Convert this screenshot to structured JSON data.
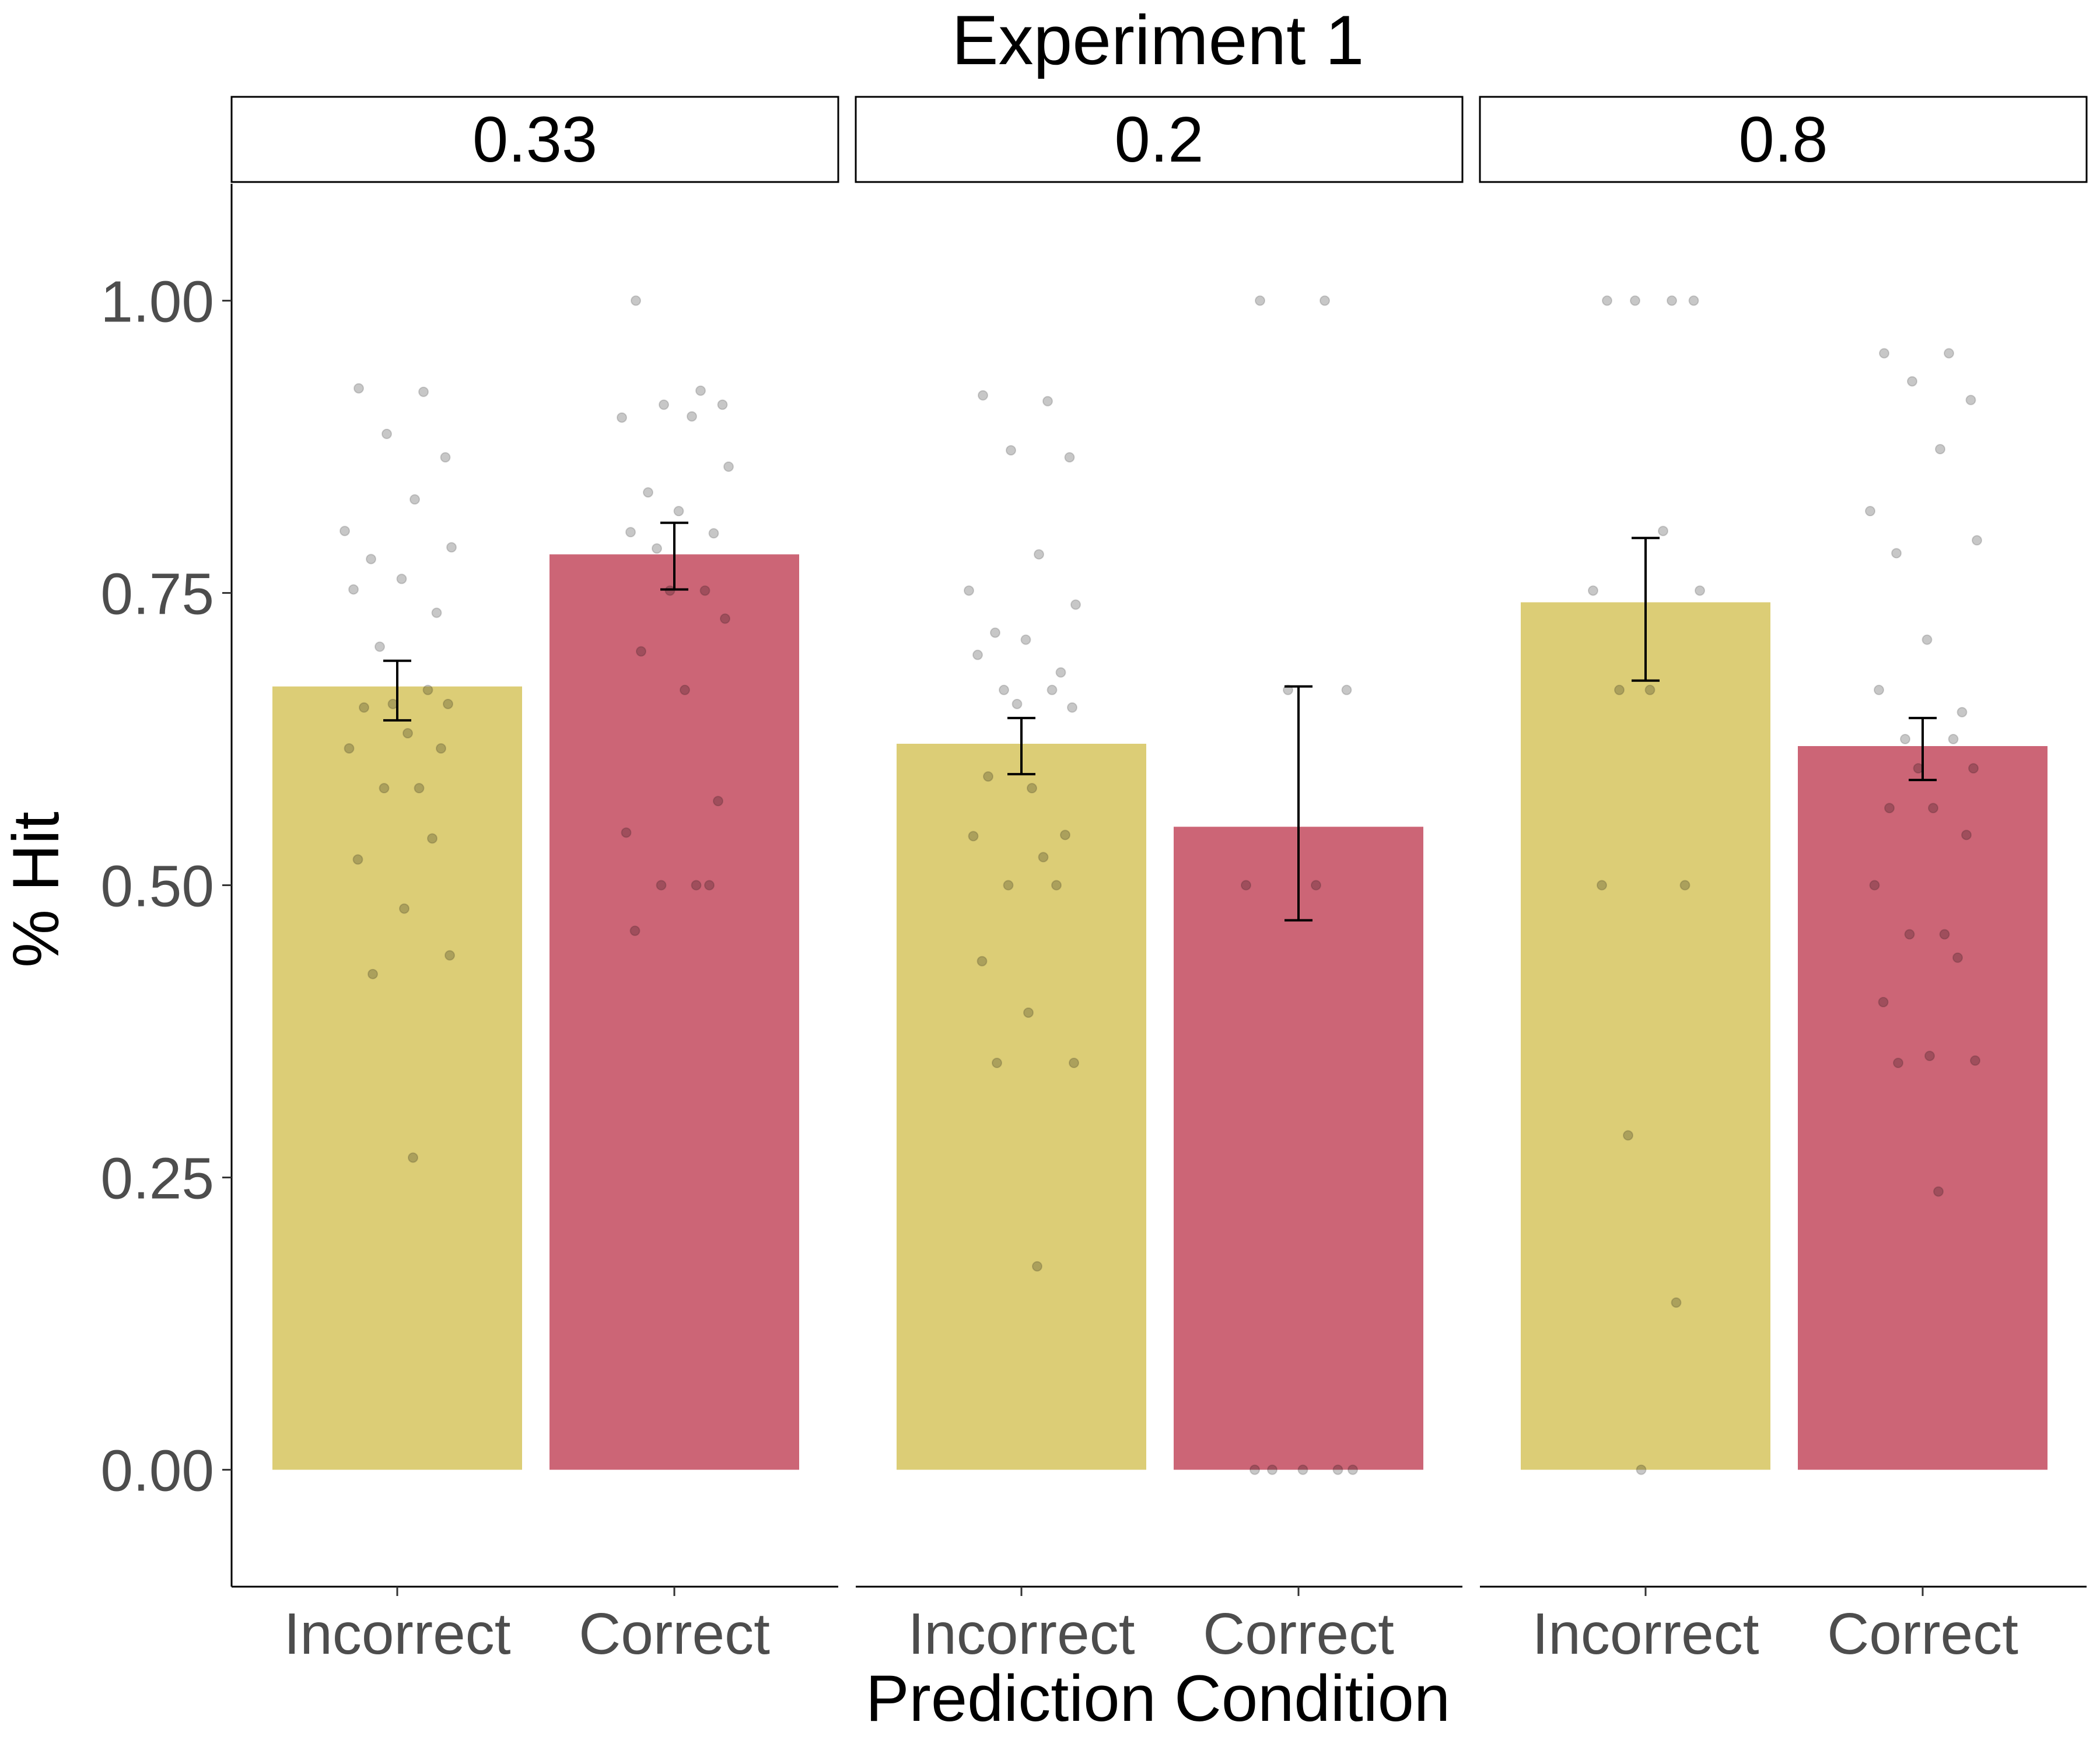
{
  "chart_data": {
    "type": "bar",
    "title": "Experiment 1",
    "xlabel": "Prediction Condition",
    "ylabel": "% Hit",
    "ylim": [
      -0.1,
      1.1
    ],
    "yticks": [
      0.0,
      0.25,
      0.5,
      0.75,
      1.0
    ],
    "ytick_labels": [
      "0.00",
      "0.25",
      "0.50",
      "0.75",
      "1.00"
    ],
    "categories": [
      "Incorrect",
      "Correct"
    ],
    "colors": {
      "Incorrect": "#dccd76",
      "Correct": "#cc6576"
    },
    "panels": [
      {
        "label": "0.33",
        "bars": [
          {
            "category": "Incorrect",
            "mean": 0.67,
            "err_low": 0.641,
            "err_high": 0.692,
            "points": [
              0.925,
              0.922,
              0.886,
              0.866,
              0.83,
              0.803,
              0.789,
              0.779,
              0.762,
              0.753,
              0.733,
              0.704,
              0.667,
              0.655,
              0.655,
              0.652,
              0.63,
              0.617,
              0.617,
              0.583,
              0.583,
              0.54,
              0.522,
              0.48,
              0.44,
              0.424,
              0.267
            ]
          },
          {
            "category": "Correct",
            "mean": 0.783,
            "err_low": 0.753,
            "err_high": 0.81,
            "points": [
              1.0,
              0.923,
              0.911,
              0.911,
              0.901,
              0.9,
              0.858,
              0.836,
              0.82,
              0.802,
              0.801,
              0.788,
              0.752,
              0.752,
              0.728,
              0.7,
              0.667,
              0.572,
              0.545,
              0.5,
              0.5,
              0.5,
              0.461
            ]
          }
        ]
      },
      {
        "label": "0.2",
        "bars": [
          {
            "category": "Incorrect",
            "mean": 0.621,
            "err_low": 0.595,
            "err_high": 0.643,
            "points": [
              0.919,
              0.914,
              0.872,
              0.866,
              0.783,
              0.752,
              0.74,
              0.716,
              0.71,
              0.697,
              0.682,
              0.667,
              0.667,
              0.655,
              0.652,
              0.593,
              0.583,
              0.543,
              0.542,
              0.524,
              0.5,
              0.5,
              0.435,
              0.391,
              0.348,
              0.348,
              0.174
            ]
          },
          {
            "category": "Correct",
            "mean": 0.55,
            "err_low": 0.47,
            "err_high": 0.67,
            "points": [
              1.0,
              1.0,
              0.667,
              0.667,
              0.5,
              0.5,
              0.0,
              0.0,
              0.0,
              0.0,
              0.0
            ]
          }
        ]
      },
      {
        "label": "0.8",
        "bars": [
          {
            "category": "Incorrect",
            "mean": 0.742,
            "err_low": 0.675,
            "err_high": 0.797,
            "points": [
              1.0,
              1.0,
              1.0,
              1.0,
              0.803,
              0.752,
              0.752,
              0.667,
              0.667,
              0.5,
              0.5,
              0.286,
              0.143,
              0.0
            ]
          },
          {
            "category": "Correct",
            "mean": 0.619,
            "err_low": 0.59,
            "err_high": 0.643,
            "points": [
              0.955,
              0.955,
              0.931,
              0.915,
              0.873,
              0.82,
              0.795,
              0.784,
              0.71,
              0.667,
              0.648,
              0.625,
              0.625,
              0.6,
              0.6,
              0.566,
              0.566,
              0.543,
              0.5,
              0.458,
              0.458,
              0.438,
              0.4,
              0.354,
              0.35,
              0.348,
              0.238
            ]
          }
        ]
      }
    ]
  }
}
